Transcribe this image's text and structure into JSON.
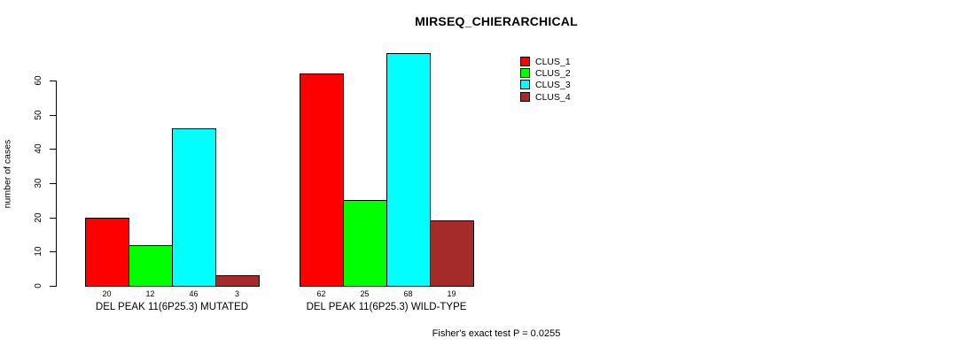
{
  "title": "MIRSEQ_CHIERARCHICAL",
  "annotation": "Fisher's exact test P = 0.0255",
  "chart_data": {
    "type": "bar",
    "title": "MIRSEQ_CHIERARCHICAL",
    "xlabel": "",
    "ylabel": "number of cases",
    "ylim": [
      0,
      60
    ],
    "yticks": [
      0,
      10,
      20,
      30,
      40,
      50,
      60
    ],
    "grid": false,
    "legend_position": "top-right",
    "series_names": [
      "CLUS_1",
      "CLUS_2",
      "CLUS_3",
      "CLUS_4"
    ],
    "colors": [
      "#ff0000",
      "#00ff00",
      "#00ffff",
      "#a52a2a"
    ],
    "groups": [
      {
        "label": "DEL PEAK 11(6P25.3) MUTATED",
        "values": [
          20,
          12,
          46,
          3
        ]
      },
      {
        "label": "DEL PEAK 11(6P25.3) WILD-TYPE",
        "values": [
          62,
          25,
          68,
          19
        ]
      }
    ],
    "annotation": "Fisher's exact test P = 0.0255"
  },
  "legend": {
    "items": [
      {
        "label": "CLUS_1",
        "color": "#ff0000"
      },
      {
        "label": "CLUS_2",
        "color": "#00ff00"
      },
      {
        "label": "CLUS_3",
        "color": "#00ffff"
      },
      {
        "label": "CLUS_4",
        "color": "#a52a2a"
      }
    ]
  }
}
